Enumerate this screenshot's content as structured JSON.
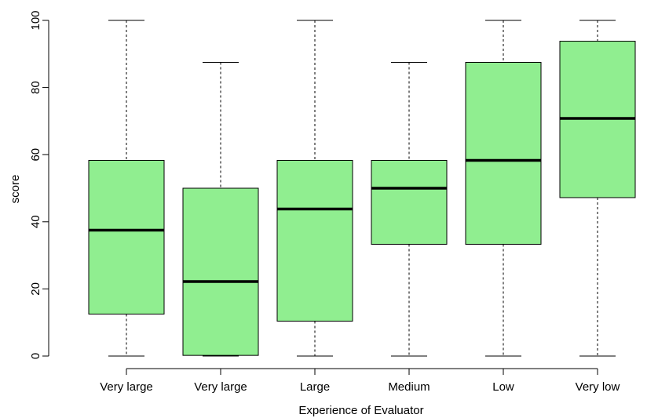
{
  "chart_data": {
    "type": "box",
    "xlabel": "Experience of Evaluator",
    "ylabel": "score",
    "ylim": [
      0,
      100
    ],
    "yticks": [
      0,
      20,
      40,
      60,
      80,
      100
    ],
    "box_color": "#90ee90",
    "categories": [
      "Very large",
      "Very large",
      "Large",
      "Medium",
      "Low",
      "Very low"
    ],
    "boxes": [
      {
        "min": 0,
        "q1": 12.5,
        "median": 37.5,
        "q3": 58.3,
        "max": 100
      },
      {
        "min": 0,
        "q1": 0.2,
        "median": 22.2,
        "q3": 50.0,
        "max": 87.5
      },
      {
        "min": 0,
        "q1": 10.4,
        "median": 43.8,
        "q3": 58.3,
        "max": 100
      },
      {
        "min": 0,
        "q1": 33.3,
        "median": 50.0,
        "q3": 58.3,
        "max": 87.5
      },
      {
        "min": 0,
        "q1": 33.3,
        "median": 58.3,
        "q3": 87.5,
        "max": 100
      },
      {
        "min": 0,
        "q1": 47.2,
        "median": 70.8,
        "q3": 93.8,
        "max": 100
      }
    ]
  }
}
